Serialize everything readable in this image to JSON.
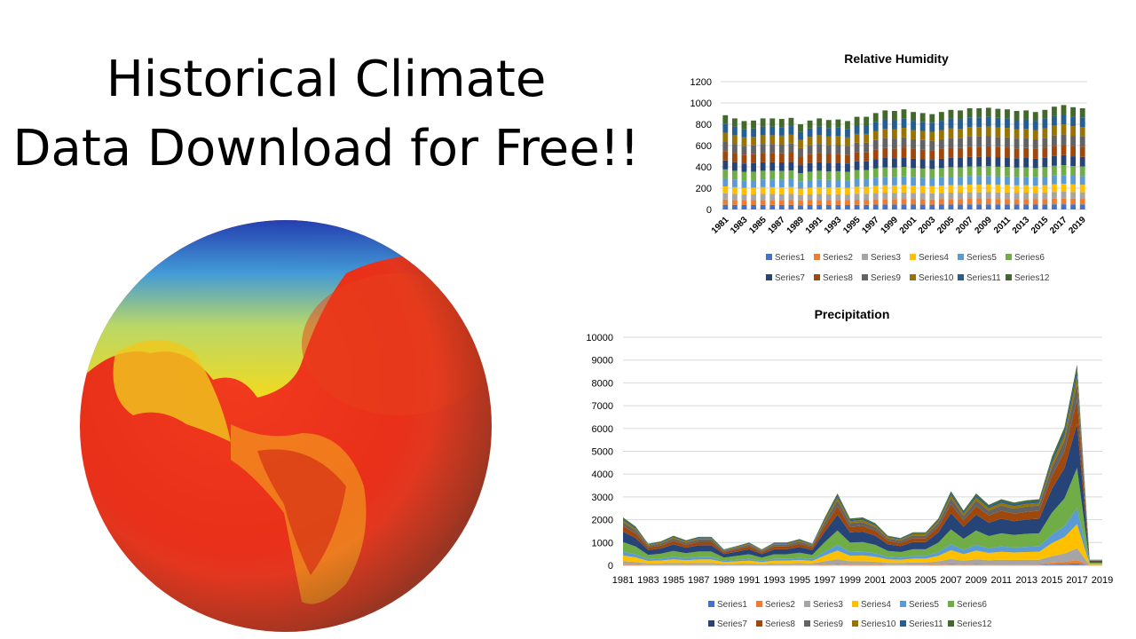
{
  "slide": {
    "title_line1": "Historical Climate",
    "title_line2": "Data Download for Free!!"
  },
  "globe": {
    "icon": "earth-temperature-globe-icon"
  },
  "colors": {
    "series": [
      "#4472C4",
      "#ED7D31",
      "#A5A5A5",
      "#FFC000",
      "#5B9BD5",
      "#70AD47",
      "#264478",
      "#9E480E",
      "#636363",
      "#997300",
      "#255E91",
      "#43682B"
    ]
  },
  "chart_data": [
    {
      "type": "bar",
      "stacked": true,
      "title": "Relative Humidity",
      "xlabel": "",
      "ylabel": "",
      "ylim": [
        0,
        1200
      ],
      "yticks": [
        0,
        200,
        400,
        600,
        800,
        1000,
        1200
      ],
      "grid": true,
      "legend_position": "bottom",
      "categories": [
        "1981",
        "1982",
        "1983",
        "1984",
        "1985",
        "1986",
        "1987",
        "1988",
        "1989",
        "1990",
        "1991",
        "1992",
        "1993",
        "1994",
        "1995",
        "1996",
        "1997",
        "1998",
        "1999",
        "2000",
        "2001",
        "2002",
        "2003",
        "2004",
        "2005",
        "2006",
        "2007",
        "2008",
        "2009",
        "2010",
        "2011",
        "2012",
        "2013",
        "2014",
        "2015",
        "2016",
        "2017",
        "2018",
        "2019"
      ],
      "xtick_labels": [
        "1981",
        "1983",
        "1985",
        "1987",
        "1989",
        "1991",
        "1993",
        "1995",
        "1997",
        "1999",
        "2001",
        "2003",
        "2005",
        "2007",
        "2009",
        "2011",
        "2013",
        "2015",
        "2017",
        "2019"
      ],
      "series_names": [
        "Series1",
        "Series2",
        "Series3",
        "Series4",
        "Series5",
        "Series6",
        "Series7",
        "Series8",
        "Series9",
        "Series10",
        "Series11",
        "Series12"
      ],
      "totals": [
        885,
        855,
        830,
        835,
        855,
        855,
        850,
        860,
        800,
        835,
        855,
        840,
        845,
        830,
        870,
        870,
        905,
        930,
        925,
        940,
        915,
        905,
        895,
        915,
        935,
        930,
        950,
        950,
        955,
        945,
        940,
        925,
        930,
        915,
        935,
        965,
        980,
        960,
        950
      ]
    },
    {
      "type": "area",
      "stacked": true,
      "title": "Precipitation",
      "xlabel": "",
      "ylabel": "",
      "ylim": [
        0,
        10000
      ],
      "yticks": [
        0,
        1000,
        2000,
        3000,
        4000,
        5000,
        6000,
        7000,
        8000,
        9000,
        10000
      ],
      "grid": true,
      "legend_position": "bottom",
      "x": [
        "1981",
        "1982",
        "1983",
        "1984",
        "1985",
        "1986",
        "1987",
        "1988",
        "1989",
        "1990",
        "1991",
        "1992",
        "1993",
        "1994",
        "1995",
        "1996",
        "1997",
        "1998",
        "1999",
        "2000",
        "2001",
        "2002",
        "2003",
        "2004",
        "2005",
        "2006",
        "2007",
        "2008",
        "2009",
        "2010",
        "2011",
        "2012",
        "2013",
        "2014",
        "2015",
        "2016",
        "2017",
        "2018",
        "2019"
      ],
      "xtick_labels": [
        "1981",
        "1983",
        "1985",
        "1987",
        "1989",
        "1991",
        "1993",
        "1995",
        "1997",
        "1999",
        "2001",
        "2003",
        "2005",
        "2007",
        "2009",
        "2011",
        "2013",
        "2015",
        "2017",
        "2019"
      ],
      "series_names": [
        "Series1",
        "Series2",
        "Series3",
        "Series4",
        "Series5",
        "Series6",
        "Series7",
        "Series8",
        "Series9",
        "Series10",
        "Series11",
        "Series12"
      ],
      "totals": [
        2100,
        1700,
        950,
        1050,
        1300,
        1100,
        1250,
        1250,
        700,
        850,
        1000,
        700,
        1000,
        1000,
        1150,
        950,
        2100,
        3150,
        2050,
        2100,
        1850,
        1300,
        1200,
        1450,
        1450,
        2050,
        3250,
        2400,
        3150,
        2650,
        2900,
        2750,
        2850,
        2900,
        4750,
        6050,
        8800,
        250,
        250
      ]
    }
  ]
}
